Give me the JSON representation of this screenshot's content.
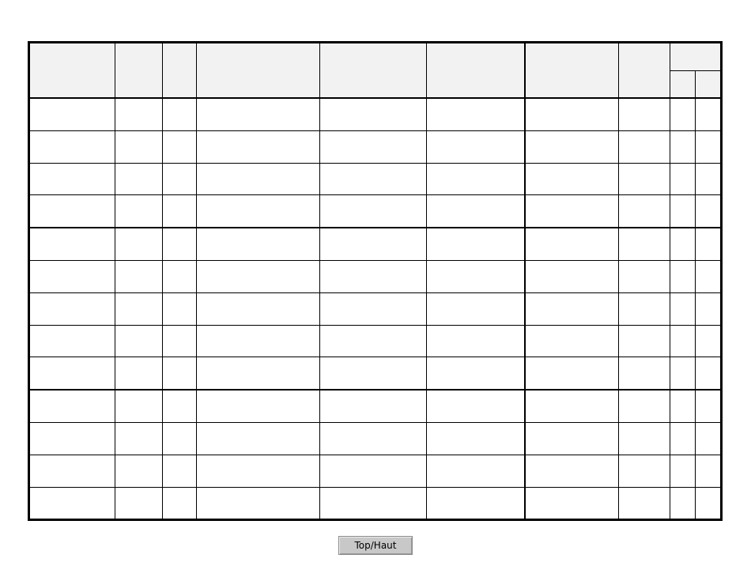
{
  "table": {
    "body_row_count": 13,
    "group_ends": [
      3,
      8
    ]
  },
  "footer": {
    "top_button_label": "Top/Haut"
  }
}
